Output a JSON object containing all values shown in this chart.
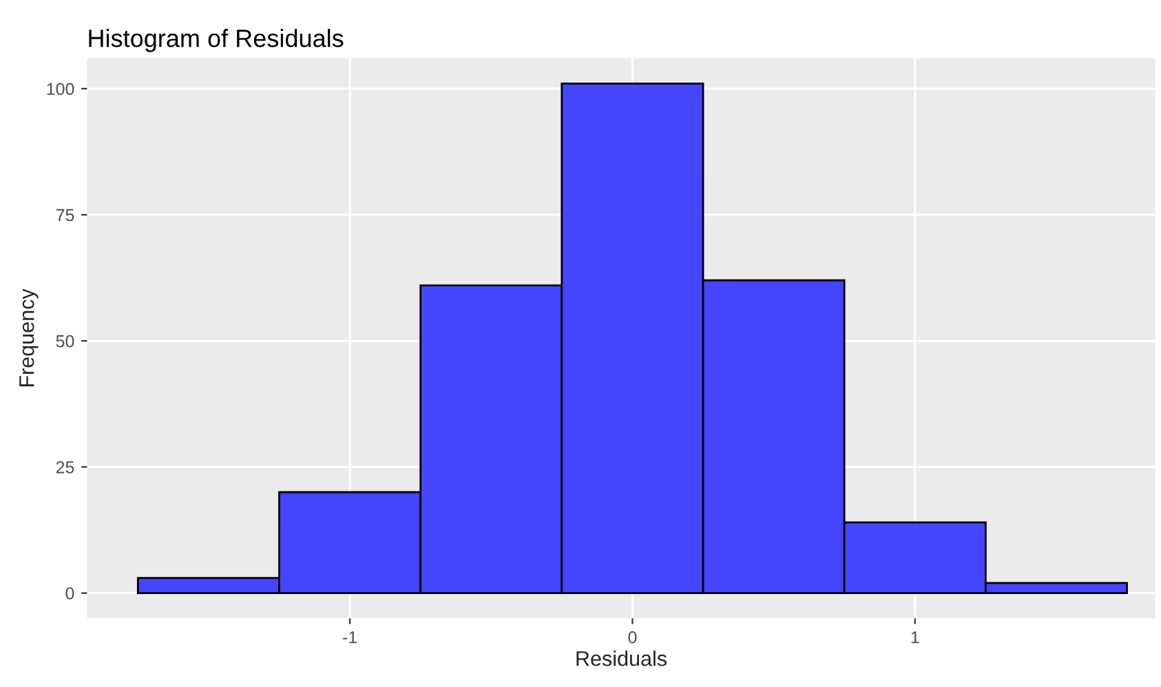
{
  "chart_data": {
    "type": "histogram",
    "title": "Histogram of Residuals",
    "xlabel": "Residuals",
    "ylabel": "Frequency",
    "bins": [
      -1.75,
      -1.25,
      -0.75,
      -0.25,
      0.25,
      0.75,
      1.25,
      1.75
    ],
    "values": [
      3,
      20,
      61,
      101,
      62,
      14,
      2
    ],
    "color": "#4545fe",
    "xlim": [
      -1.93,
      1.85
    ],
    "ylim": [
      -5,
      106
    ],
    "xticks": [
      -1,
      0,
      1
    ],
    "yticks": [
      0,
      25,
      50,
      75,
      100
    ],
    "grid": true
  }
}
